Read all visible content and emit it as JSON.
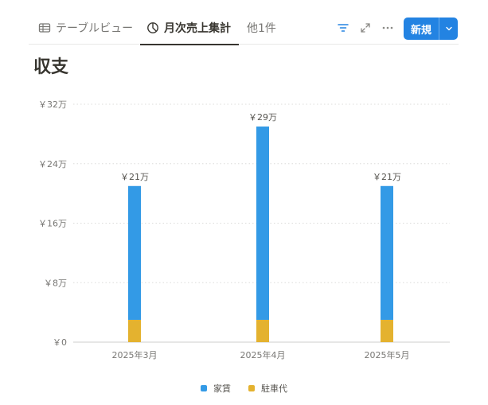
{
  "tabs": [
    {
      "label": "テーブルビュー",
      "icon": "table-icon",
      "active": false
    },
    {
      "label": "月次売上集計",
      "icon": "pie-chart-icon",
      "active": true
    }
  ],
  "more_views_label": "他1件",
  "toolbar": {
    "filter_icon": "filter-icon",
    "expand_icon": "expand-icon",
    "more_icon": "more-horizontal-icon",
    "new_label": "新規",
    "new_dropdown_icon": "chevron-down-icon"
  },
  "colors": {
    "accent": "#2383e2",
    "rent": "#339ae6",
    "parking": "#e4b22f"
  },
  "page_title": "収支",
  "chart_data": {
    "type": "bar",
    "stacked": true,
    "title": "収支",
    "categories": [
      "2025年3月",
      "2025年4月",
      "2025年5月"
    ],
    "series": [
      {
        "name": "家賃",
        "values": [
          180000,
          260000,
          180000
        ],
        "color": "#339ae6"
      },
      {
        "name": "駐車代",
        "values": [
          30000,
          30000,
          30000
        ],
        "color": "#e4b22f"
      }
    ],
    "totals": [
      210000,
      290000,
      210000
    ],
    "total_labels": [
      "￥21万",
      "￥29万",
      "￥21万"
    ],
    "y_ticks": [
      0,
      80000,
      160000,
      240000,
      320000
    ],
    "y_tick_labels": [
      "￥0",
      "￥8万",
      "￥16万",
      "￥24万",
      "￥32万"
    ],
    "ylim": [
      0,
      320000
    ],
    "xlabel": "",
    "ylabel": "",
    "legend_position": "bottom",
    "grid": true
  }
}
